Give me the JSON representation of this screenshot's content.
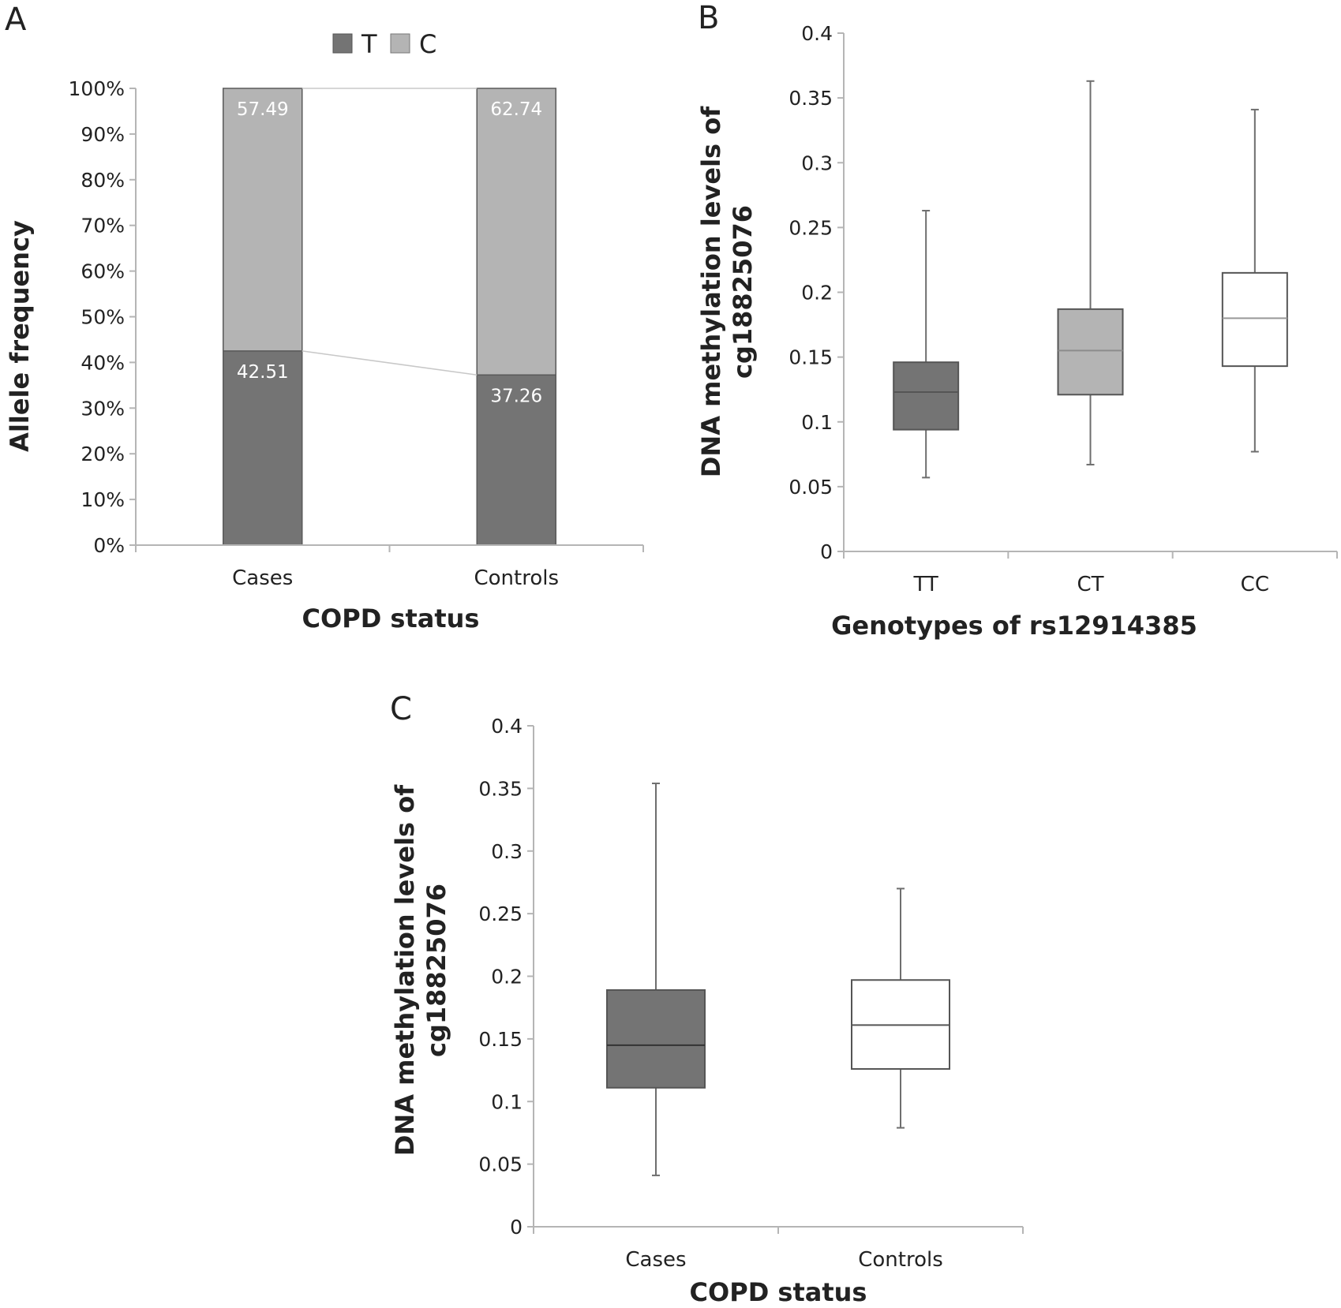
{
  "chart_data": [
    {
      "panel": "A",
      "type": "bar",
      "stacked": true,
      "categories": [
        "Cases",
        "Controls"
      ],
      "series": [
        {
          "name": "T",
          "values": [
            42.51,
            37.26
          ],
          "labels": [
            "42.51",
            "37.26"
          ],
          "color": "#747474"
        },
        {
          "name": "C",
          "values": [
            57.49,
            62.74
          ],
          "labels": [
            "57.49",
            "62.74"
          ],
          "color": "#b4b4b4"
        }
      ],
      "legend": [
        "T",
        "C"
      ],
      "legend_position": "top-center",
      "ylim": [
        0,
        100
      ],
      "yticks": [
        "0%",
        "10%",
        "20%",
        "30%",
        "40%",
        "50%",
        "60%",
        "70%",
        "80%",
        "90%",
        "100%"
      ],
      "xlabel": "COPD status",
      "ylabel": "Allele frequency",
      "grid": false
    },
    {
      "panel": "B",
      "type": "box",
      "categories": [
        "TT",
        "CT",
        "CC"
      ],
      "boxes": [
        {
          "min": 0.057,
          "q1": 0.094,
          "median": 0.123,
          "q3": 0.146,
          "max": 0.263,
          "color": "#747474",
          "median_color": "#555555"
        },
        {
          "min": 0.067,
          "q1": 0.121,
          "median": 0.155,
          "q3": 0.187,
          "max": 0.363,
          "color": "#b4b4b4",
          "median_color": "#8c8c8c"
        },
        {
          "min": 0.077,
          "q1": 0.143,
          "median": 0.18,
          "q3": 0.215,
          "max": 0.341,
          "color": "#ffffff",
          "median_color": "#999999"
        }
      ],
      "ylim": [
        0,
        0.4
      ],
      "yticks": [
        "0",
        "0.05",
        "0.1",
        "0.15",
        "0.2",
        "0.25",
        "0.3",
        "0.35",
        "0.4"
      ],
      "xlabel": "Genotypes of rs12914385",
      "ylabel_line1": "DNA methylation levels of",
      "ylabel_line2": "cg18825076",
      "grid": false
    },
    {
      "panel": "C",
      "type": "box",
      "categories": [
        "Cases",
        "Controls"
      ],
      "boxes": [
        {
          "min": 0.041,
          "q1": 0.111,
          "median": 0.145,
          "q3": 0.189,
          "max": 0.354,
          "color": "#747474",
          "median_color": "#333333"
        },
        {
          "min": 0.079,
          "q1": 0.126,
          "median": 0.161,
          "q3": 0.197,
          "max": 0.27,
          "color": "#ffffff",
          "median_color": "#555555"
        }
      ],
      "ylim": [
        0,
        0.4
      ],
      "yticks": [
        "0",
        "0.05",
        "0.1",
        "0.15",
        "0.2",
        "0.25",
        "0.3",
        "0.35",
        "0.4"
      ],
      "xlabel": "COPD status",
      "ylabel_line1": "DNA methylation levels of",
      "ylabel_line2": "cg18825076",
      "grid": false
    }
  ]
}
